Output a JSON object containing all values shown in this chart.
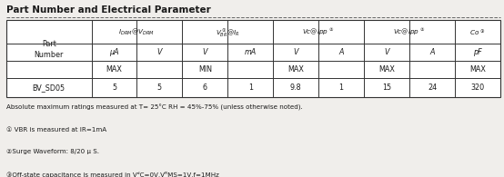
{
  "title": "Part Number and Electrical Parameter",
  "bg_color": "#f0eeeb",
  "table_bg": "#ffffff",
  "border_color": "#333333",
  "font_color": "#1a1a1a",
  "notes": [
    "Absolute maximum ratings measured at T= 25°C RH = 45%-75% (unless otherwise noted).",
    "① VBR is measured at IR=1mA",
    "②Surge Waveform: 8/20 μ S.",
    "③Off-state capacitance is measured in VᵈC=0V,VᴿMS=1V,f=1MHz"
  ]
}
